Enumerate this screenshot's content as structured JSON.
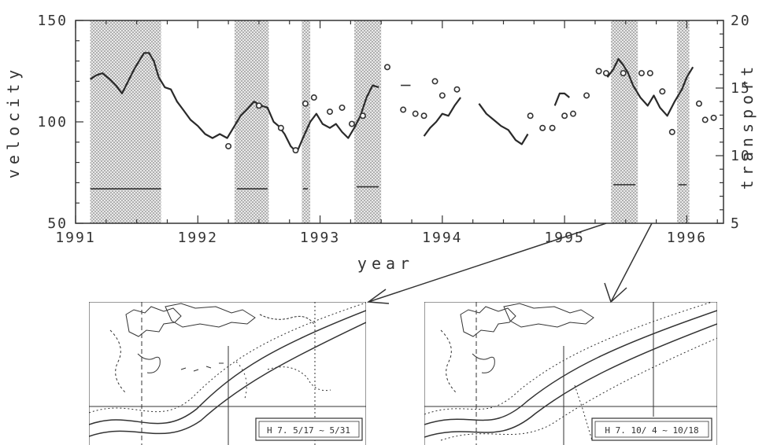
{
  "chart_data": {
    "type": "line",
    "xlabel": "year",
    "ylabel_left": "velocity",
    "ylabel_right": "transport",
    "xlim": [
      1991,
      1996.3
    ],
    "ylim_left": [
      50,
      150
    ],
    "ylim_right": [
      5,
      20
    ],
    "x_ticks": [
      "1991",
      "1992",
      "1993",
      "1994",
      "1995",
      "1996"
    ],
    "y_ticks_left": [
      "50",
      "100",
      "150"
    ],
    "y_ticks_right": [
      "5",
      "10",
      "15",
      "20"
    ],
    "grid": false,
    "series": [
      {
        "style": "line",
        "segments": [
          [
            [
              1991.12,
              121
            ],
            [
              1991.17,
              123
            ],
            [
              1991.22,
              124
            ],
            [
              1991.28,
              121
            ],
            [
              1991.33,
              118
            ],
            [
              1991.38,
              114
            ],
            [
              1991.43,
              120
            ],
            [
              1991.48,
              126
            ],
            [
              1991.52,
              130
            ],
            [
              1991.56,
              134
            ],
            [
              1991.6,
              134
            ],
            [
              1991.64,
              130
            ],
            [
              1991.68,
              122
            ],
            [
              1991.73,
              117
            ],
            [
              1991.78,
              116
            ],
            [
              1991.83,
              110
            ],
            [
              1991.88,
              106
            ],
            [
              1991.94,
              101
            ],
            [
              1992.0,
              98
            ],
            [
              1992.06,
              94
            ],
            [
              1992.12,
              92
            ],
            [
              1992.18,
              94
            ],
            [
              1992.24,
              92
            ],
            [
              1992.3,
              98
            ],
            [
              1992.35,
              103
            ],
            [
              1992.4,
              106
            ],
            [
              1992.46,
              110
            ],
            [
              1992.52,
              108
            ],
            [
              1992.57,
              107
            ],
            [
              1992.62,
              100
            ],
            [
              1992.66,
              98
            ],
            [
              1992.71,
              94
            ],
            [
              1992.76,
              88
            ],
            [
              1992.81,
              85
            ],
            [
              1992.86,
              92
            ],
            [
              1992.92,
              100
            ],
            [
              1992.97,
              104
            ],
            [
              1993.02,
              99
            ],
            [
              1993.08,
              97
            ],
            [
              1993.13,
              99
            ],
            [
              1993.18,
              95
            ],
            [
              1993.23,
              92
            ],
            [
              1993.28,
              97
            ],
            [
              1993.33,
              103
            ],
            [
              1993.38,
              112
            ],
            [
              1993.43,
              118
            ],
            [
              1993.48,
              117
            ]
          ],
          [
            [
              1993.85,
              93
            ],
            [
              1993.9,
              97
            ],
            [
              1993.95,
              100
            ],
            [
              1994.0,
              104
            ],
            [
              1994.05,
              103
            ],
            [
              1994.1,
              108
            ],
            [
              1994.15,
              112
            ]
          ],
          [
            [
              1994.3,
              109
            ],
            [
              1994.36,
              104
            ],
            [
              1994.42,
              101
            ],
            [
              1994.48,
              98
            ],
            [
              1994.54,
              96
            ],
            [
              1994.6,
              91
            ],
            [
              1994.65,
              89
            ],
            [
              1994.7,
              94
            ]
          ],
          [
            [
              1994.92,
              108
            ],
            [
              1994.96,
              114
            ],
            [
              1995.0,
              114
            ],
            [
              1995.04,
              112
            ]
          ],
          [
            [
              1995.35,
              122
            ],
            [
              1995.4,
              126
            ],
            [
              1995.44,
              131
            ],
            [
              1995.48,
              128
            ],
            [
              1995.52,
              124
            ],
            [
              1995.56,
              118
            ],
            [
              1995.62,
              112
            ],
            [
              1995.68,
              108
            ],
            [
              1995.73,
              113
            ],
            [
              1995.78,
              107
            ],
            [
              1995.84,
              103
            ],
            [
              1995.9,
              110
            ],
            [
              1995.96,
              116
            ],
            [
              1996.0,
              122
            ],
            [
              1996.05,
              127
            ]
          ]
        ]
      },
      {
        "style": "circles",
        "points": [
          [
            1992.25,
            88
          ],
          [
            1992.5,
            108
          ],
          [
            1992.68,
            97
          ],
          [
            1992.8,
            86
          ],
          [
            1992.88,
            109
          ],
          [
            1992.95,
            112
          ],
          [
            1993.08,
            105
          ],
          [
            1993.18,
            107
          ],
          [
            1993.26,
            99
          ],
          [
            1993.35,
            103
          ],
          [
            1993.55,
            127
          ],
          [
            1993.68,
            106
          ],
          [
            1993.78,
            104
          ],
          [
            1993.85,
            103
          ],
          [
            1993.94,
            120
          ],
          [
            1994.0,
            113
          ],
          [
            1994.12,
            116
          ],
          [
            1994.72,
            103
          ],
          [
            1994.82,
            97
          ],
          [
            1994.9,
            97
          ],
          [
            1995.0,
            103
          ],
          [
            1995.07,
            104
          ],
          [
            1995.18,
            113
          ],
          [
            1995.28,
            125
          ],
          [
            1995.34,
            124
          ],
          [
            1995.48,
            124
          ],
          [
            1995.63,
            124
          ],
          [
            1995.7,
            124
          ],
          [
            1995.8,
            115
          ],
          [
            1995.88,
            95
          ],
          [
            1996.1,
            109
          ],
          [
            1996.15,
            101
          ],
          [
            1996.22,
            102
          ]
        ]
      }
    ],
    "shaded_x_ranges": [
      [
        1991.12,
        1991.7
      ],
      [
        1992.3,
        1992.58
      ],
      [
        1992.85,
        1992.92
      ],
      [
        1993.28,
        1993.5
      ],
      [
        1995.38,
        1995.6
      ],
      [
        1995.92,
        1996.02
      ]
    ],
    "reference_marks": [
      [
        1991.12,
        1991.7,
        67
      ],
      [
        1992.32,
        1992.57,
        67
      ],
      [
        1992.86,
        1992.9,
        67
      ],
      [
        1993.3,
        1993.48,
        68
      ],
      [
        1993.66,
        1993.74,
        118
      ],
      [
        1995.4,
        1995.58,
        69
      ],
      [
        1995.93,
        1996.0,
        69
      ]
    ]
  },
  "maps": [
    {
      "date_label": "H 7.  5/17 ~ 5/31"
    },
    {
      "date_label": "H 7.  10/ 4 ~ 10/18"
    }
  ]
}
